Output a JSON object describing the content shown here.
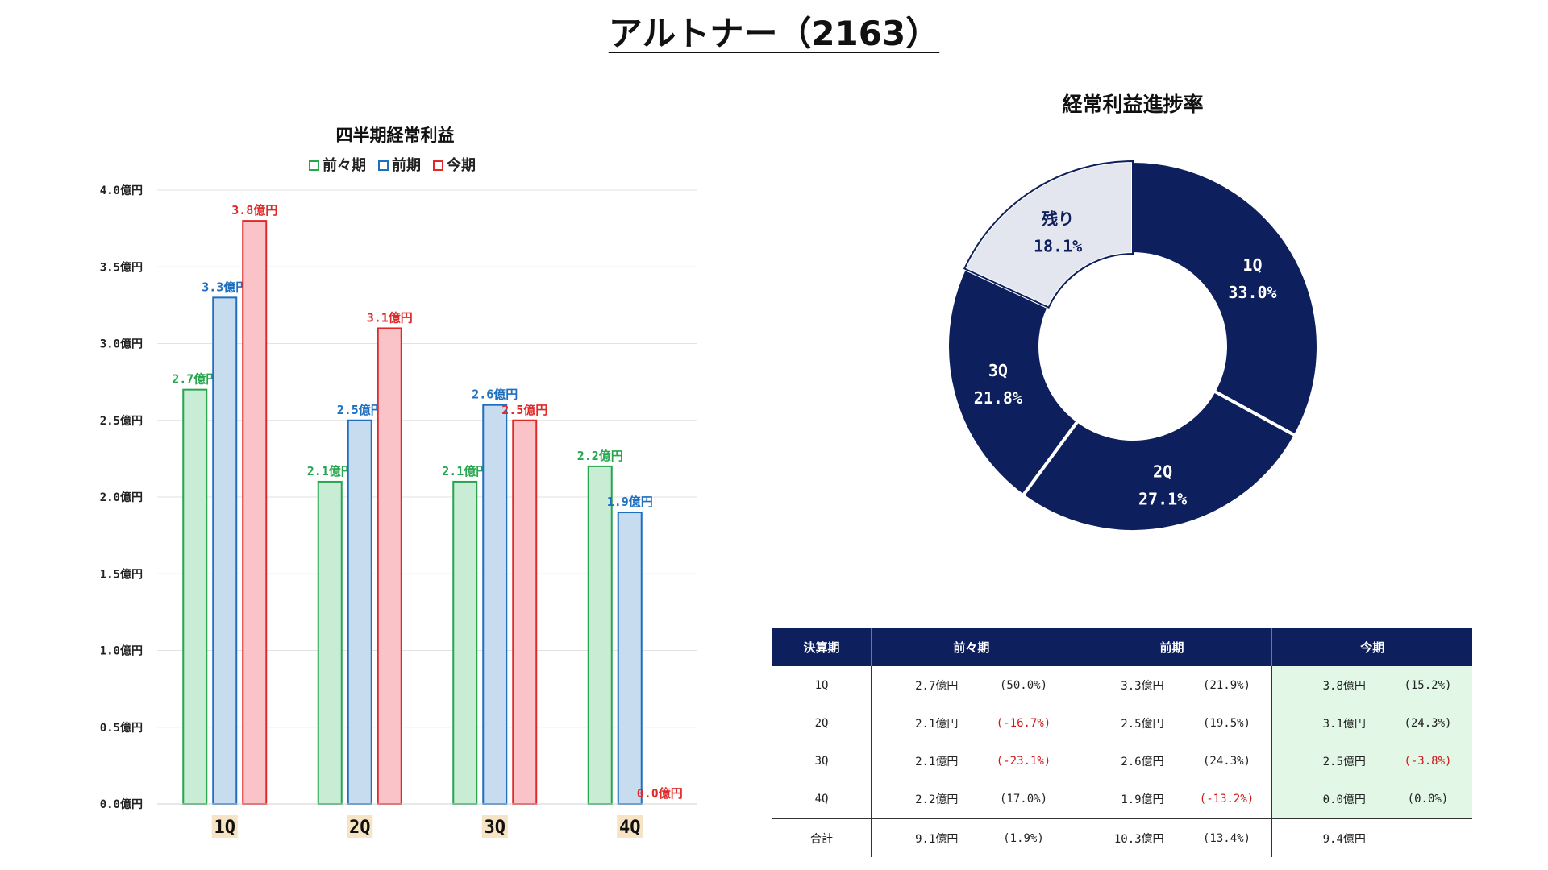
{
  "title": "アルトナー（2163）",
  "chart_data": [
    {
      "type": "bar",
      "title": "四半期経常利益",
      "unit": "億円",
      "categories": [
        "1Q",
        "2Q",
        "3Q",
        "4Q"
      ],
      "series": [
        {
          "name": "前々期",
          "values": [
            2.7,
            2.1,
            2.1,
            2.2
          ],
          "color": "#27a64f",
          "fill": "#c9ecd5"
        },
        {
          "name": "前期",
          "values": [
            3.3,
            2.5,
            2.6,
            1.9
          ],
          "color": "#1f6fbf",
          "fill": "#c8dcf0"
        },
        {
          "name": "今期",
          "values": [
            3.8,
            3.1,
            2.5,
            0.0
          ],
          "color": "#e02a2a",
          "fill": "#f9c3c8"
        }
      ],
      "data_labels": [
        [
          "2.7億円",
          "2.1億円",
          "2.1億円",
          "2.2億円"
        ],
        [
          "3.3億円",
          "2.5億円",
          "2.6億円",
          "1.9億円"
        ],
        [
          "3.8億円",
          "3.1億円",
          "2.5億円",
          "0.0億円"
        ]
      ],
      "ylim": [
        0,
        4.0
      ],
      "yticks": [
        0,
        0.5,
        1.0,
        1.5,
        2.0,
        2.5,
        3.0,
        3.5,
        4.0
      ],
      "ytick_labels": [
        "0.0億円",
        "0.5億円",
        "1.0億円",
        "1.5億円",
        "2.0億円",
        "2.5億円",
        "3.0億円",
        "3.5億円",
        "4.0億円"
      ],
      "grid": true,
      "legend_position": "top"
    },
    {
      "type": "pie",
      "title": "経常利益進捗率",
      "donut": true,
      "slices": [
        {
          "label": "1Q",
          "value": 33.0,
          "display": "33.0%",
          "color": "#0d1f5c"
        },
        {
          "label": "2Q",
          "value": 27.1,
          "display": "27.1%",
          "color": "#0d1f5c"
        },
        {
          "label": "3Q",
          "value": 21.8,
          "display": "21.8%",
          "color": "#0d1f5c"
        },
        {
          "label": "残り",
          "value": 18.1,
          "display": "18.1%",
          "color": "#e3e6ef"
        }
      ]
    }
  ],
  "table": {
    "headers": [
      "決算期",
      "前々期",
      "前期",
      "今期"
    ],
    "rows": [
      {
        "period": "1Q",
        "cells": [
          {
            "v": "2.7億円",
            "p": "(50.0%)",
            "neg": false
          },
          {
            "v": "3.3億円",
            "p": "(21.9%)",
            "neg": false
          },
          {
            "v": "3.8億円",
            "p": "(15.2%)",
            "neg": false
          }
        ]
      },
      {
        "period": "2Q",
        "cells": [
          {
            "v": "2.1億円",
            "p": "(-16.7%)",
            "neg": true
          },
          {
            "v": "2.5億円",
            "p": "(19.5%)",
            "neg": false
          },
          {
            "v": "3.1億円",
            "p": "(24.3%)",
            "neg": false
          }
        ]
      },
      {
        "period": "3Q",
        "cells": [
          {
            "v": "2.1億円",
            "p": "(-23.1%)",
            "neg": true
          },
          {
            "v": "2.6億円",
            "p": "(24.3%)",
            "neg": false
          },
          {
            "v": "2.5億円",
            "p": "(-3.8%)",
            "neg": true
          }
        ]
      },
      {
        "period": "4Q",
        "cells": [
          {
            "v": "2.2億円",
            "p": "(17.0%)",
            "neg": false
          },
          {
            "v": "1.9億円",
            "p": "(-13.2%)",
            "neg": true
          },
          {
            "v": "0.0億円",
            "p": "(0.0%)",
            "neg": false
          }
        ]
      }
    ],
    "total": {
      "period": "合計",
      "cells": [
        {
          "v": "9.1億円",
          "p": "(1.9%)",
          "neg": false
        },
        {
          "v": "10.3億円",
          "p": "(13.4%)",
          "neg": false
        },
        {
          "v": "9.4億円",
          "p": "",
          "neg": false
        }
      ]
    }
  }
}
